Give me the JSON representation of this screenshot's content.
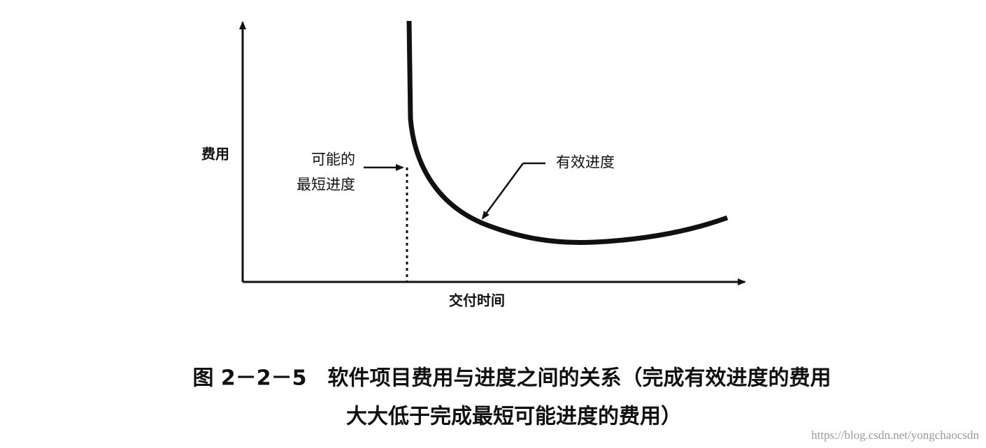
{
  "y_axis_label": "费用",
  "x_axis_label": "交付时间",
  "annotations": {
    "shortest_schedule": [
      "可能的",
      "最短进度"
    ],
    "effective_schedule": "有效进度"
  },
  "caption": [
    "图 2－2－5　软件项目费用与进度之间的关系（完成有效进度的费用",
    "大大低于完成最短可能进度的费用）"
  ],
  "watermark": "https://blog.csdn.net/yongchaocsdn"
}
